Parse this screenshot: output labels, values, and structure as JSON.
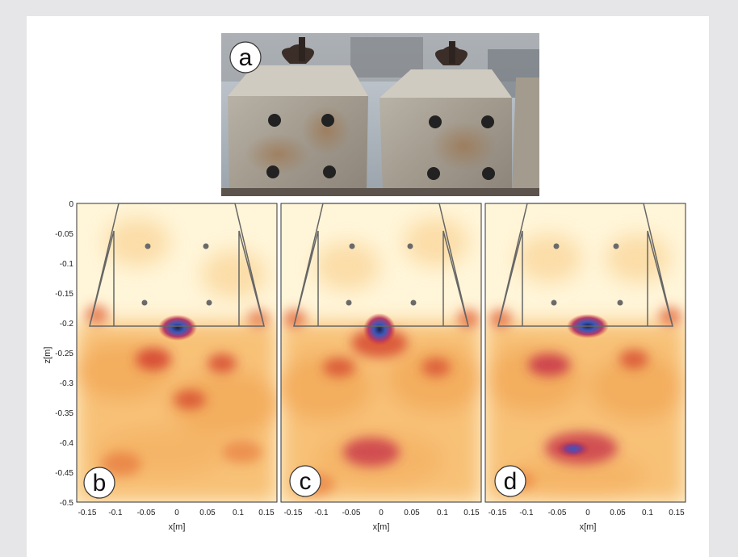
{
  "figure": {
    "photo": {
      "label": "a",
      "subject": "two concrete railway sleepers"
    },
    "panels": [
      {
        "label": "b",
        "xlabel": "x[m]"
      },
      {
        "label": "c",
        "xlabel": "x[m]"
      },
      {
        "label": "d",
        "xlabel": "x[m]"
      }
    ],
    "ylabel": "z[m]",
    "x_ticks": [
      "-0.15",
      "-0.1",
      "-0.05",
      "0",
      "0.05",
      "0.1",
      "0.15"
    ],
    "y_ticks": [
      "0",
      "-0.05",
      "-0.1",
      "-0.15",
      "-0.2",
      "-0.25",
      "-0.3",
      "-0.35",
      "-0.4",
      "-0.45",
      "-0.5"
    ],
    "x_range": [
      -0.16,
      0.16
    ],
    "z_range": [
      -0.5,
      0
    ],
    "colors": {
      "background": "#fff5d8",
      "mid": "#f2a24a",
      "high": "#d23a2a",
      "peak": "#3a58b8",
      "outline": "#666666"
    }
  }
}
